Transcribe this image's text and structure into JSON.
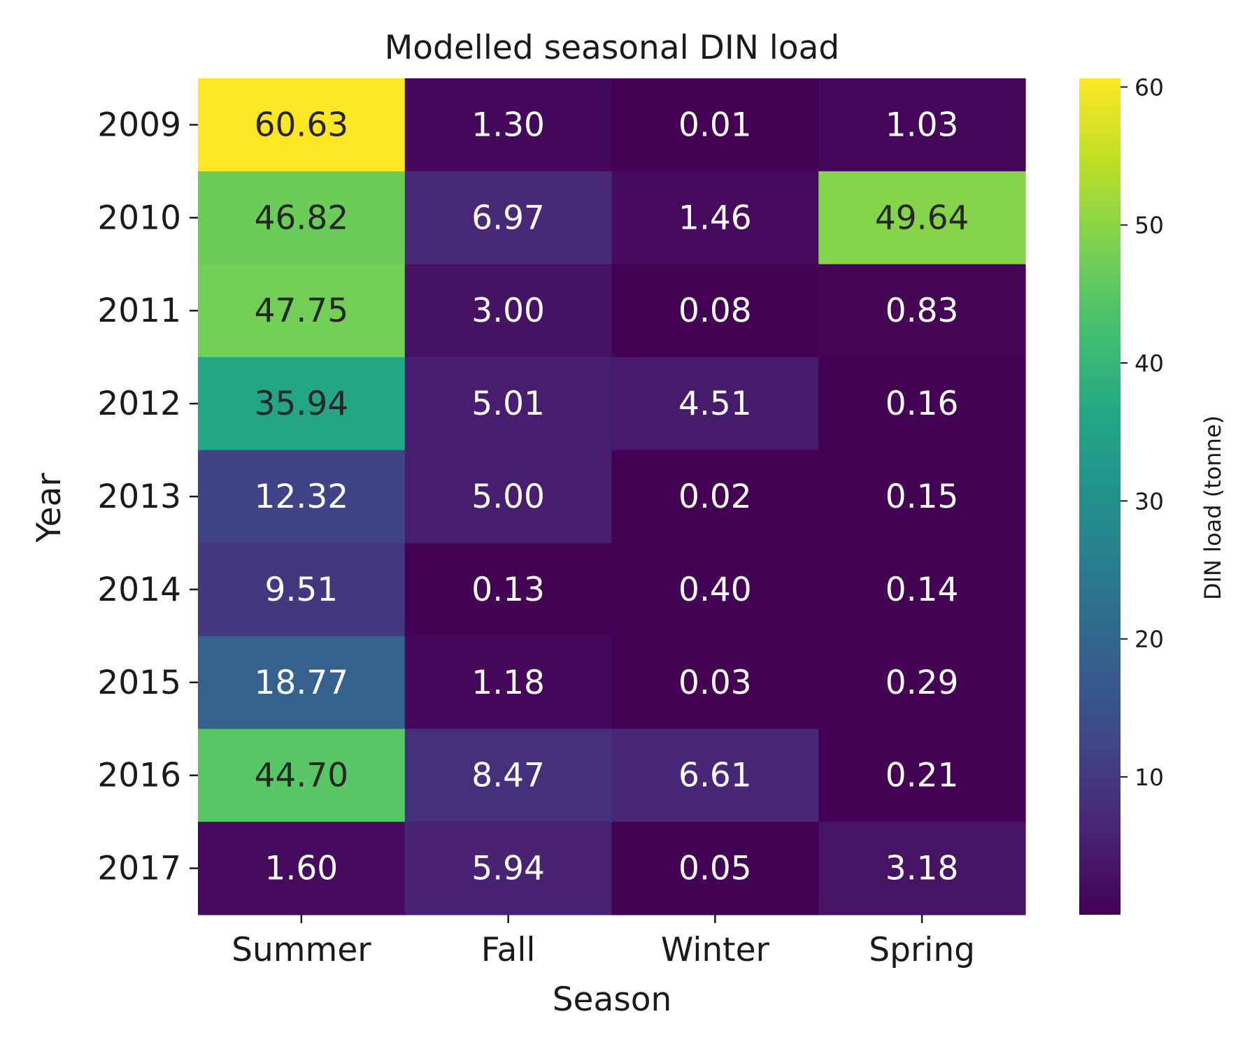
{
  "chart_data": {
    "type": "heatmap",
    "title": "Modelled seasonal DIN load",
    "xlabel": "Season",
    "ylabel": "Year",
    "x_categories": [
      "Summer",
      "Fall",
      "Winter",
      "Spring"
    ],
    "y_categories": [
      "2009",
      "2010",
      "2011",
      "2012",
      "2013",
      "2014",
      "2015",
      "2016",
      "2017"
    ],
    "values": [
      [
        60.63,
        1.3,
        0.01,
        1.03
      ],
      [
        46.82,
        6.97,
        1.46,
        49.64
      ],
      [
        47.75,
        3.0,
        0.08,
        0.83
      ],
      [
        35.94,
        5.01,
        4.51,
        0.16
      ],
      [
        12.32,
        5.0,
        0.02,
        0.15
      ],
      [
        9.51,
        0.13,
        0.4,
        0.14
      ],
      [
        18.77,
        1.18,
        0.03,
        0.29
      ],
      [
        44.7,
        8.47,
        6.61,
        0.21
      ],
      [
        1.6,
        5.94,
        0.05,
        3.18
      ]
    ],
    "value_format": "0.00",
    "colormap": "viridis",
    "vmin": 0.01,
    "vmax": 60.63,
    "colorbar": {
      "label": "DIN load (tonne)",
      "ticks": [
        10,
        20,
        30,
        40,
        50,
        60
      ]
    }
  }
}
